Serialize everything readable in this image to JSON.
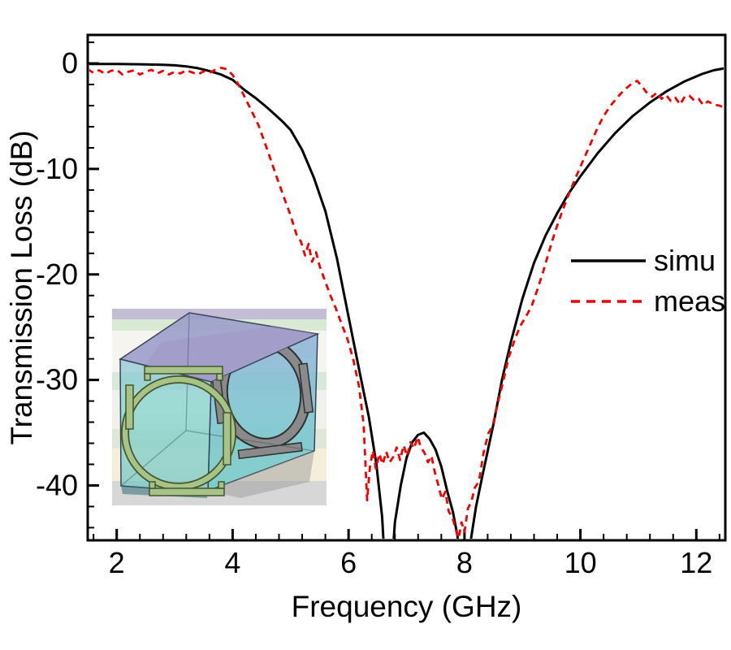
{
  "chart_data": {
    "type": "line",
    "title": "",
    "xlabel": "Frequency (GHz)",
    "ylabel": "Transmission Loss (dB)",
    "xlim": [
      1.5,
      12.5
    ],
    "ylim": [
      -45.2,
      2.7
    ],
    "grid": false,
    "legend_position": "right-middle",
    "x_major_ticks": [
      2,
      4,
      6,
      8,
      10,
      12
    ],
    "x_tick_labels": [
      "2",
      "4",
      "6",
      "8",
      "10",
      "12"
    ],
    "x_minor_step": 0.4,
    "y_major_ticks": [
      0,
      -10,
      -20,
      -30,
      -40
    ],
    "y_tick_labels": [
      "0",
      "-10",
      "-20",
      "-30",
      "-40"
    ],
    "y_minor_step": 2,
    "series": [
      {
        "name": "simu",
        "color": "#000000",
        "style": "solid",
        "points": [
          [
            1.5,
            -0.05
          ],
          [
            2.0,
            -0.06
          ],
          [
            2.4,
            -0.08
          ],
          [
            2.8,
            -0.13
          ],
          [
            3.0,
            -0.18
          ],
          [
            3.2,
            -0.28
          ],
          [
            3.4,
            -0.45
          ],
          [
            3.6,
            -0.72
          ],
          [
            3.8,
            -1.05
          ],
          [
            4.0,
            -1.55
          ],
          [
            4.2,
            -2.5
          ],
          [
            4.4,
            -3.3
          ],
          [
            4.6,
            -4.2
          ],
          [
            4.86,
            -5.5
          ],
          [
            5.0,
            -6.3
          ],
          [
            5.2,
            -8.2
          ],
          [
            5.4,
            -10.8
          ],
          [
            5.6,
            -14.0
          ],
          [
            5.8,
            -18.5
          ],
          [
            6.0,
            -24.0
          ],
          [
            6.2,
            -29.5
          ],
          [
            6.35,
            -33.5
          ],
          [
            6.48,
            -38.0
          ],
          [
            6.58,
            -43.0
          ],
          [
            6.68,
            -53.0
          ],
          [
            6.8,
            -43.5
          ],
          [
            6.9,
            -40.0
          ],
          [
            7.0,
            -37.4
          ],
          [
            7.1,
            -35.9
          ],
          [
            7.2,
            -35.2
          ],
          [
            7.3,
            -35.0
          ],
          [
            7.4,
            -35.6
          ],
          [
            7.5,
            -36.6
          ],
          [
            7.6,
            -38.2
          ],
          [
            7.7,
            -40.5
          ],
          [
            7.8,
            -42.5
          ],
          [
            7.88,
            -44.8
          ],
          [
            7.99,
            -56.0
          ],
          [
            8.1,
            -45.5
          ],
          [
            8.2,
            -42.0
          ],
          [
            8.32,
            -38.8
          ],
          [
            8.5,
            -34.2
          ],
          [
            8.65,
            -29.9
          ],
          [
            8.8,
            -26.4
          ],
          [
            9.0,
            -22.3
          ],
          [
            9.2,
            -18.9
          ],
          [
            9.4,
            -16.3
          ],
          [
            9.6,
            -14.2
          ],
          [
            9.8,
            -12.3
          ],
          [
            10.0,
            -10.7
          ],
          [
            10.3,
            -8.5
          ],
          [
            10.6,
            -6.6
          ],
          [
            10.9,
            -5.0
          ],
          [
            11.2,
            -3.7
          ],
          [
            11.5,
            -2.6
          ],
          [
            11.8,
            -1.7
          ],
          [
            12.1,
            -1.0
          ],
          [
            12.3,
            -0.65
          ],
          [
            12.5,
            -0.45
          ]
        ]
      },
      {
        "name": "meas",
        "color": "#f50000",
        "style": "dashed",
        "points": [
          [
            1.5,
            -0.55
          ],
          [
            1.6,
            -0.9
          ],
          [
            1.7,
            -0.65
          ],
          [
            1.8,
            -1.0
          ],
          [
            1.9,
            -0.7
          ],
          [
            2.0,
            -0.6
          ],
          [
            2.1,
            -1.05
          ],
          [
            2.2,
            -0.8
          ],
          [
            2.3,
            -0.65
          ],
          [
            2.4,
            -1.05
          ],
          [
            2.5,
            -0.8
          ],
          [
            2.6,
            -0.6
          ],
          [
            2.7,
            -0.95
          ],
          [
            2.8,
            -0.7
          ],
          [
            2.9,
            -1.05
          ],
          [
            3.0,
            -0.8
          ],
          [
            3.1,
            -0.95
          ],
          [
            3.2,
            -0.65
          ],
          [
            3.3,
            -0.85
          ],
          [
            3.4,
            -1.05
          ],
          [
            3.5,
            -0.75
          ],
          [
            3.6,
            -0.9
          ],
          [
            3.7,
            -0.6
          ],
          [
            3.8,
            -0.42
          ],
          [
            3.9,
            -0.55
          ],
          [
            4.0,
            -1.1
          ],
          [
            4.1,
            -2.0
          ],
          [
            4.2,
            -3.1
          ],
          [
            4.3,
            -4.2
          ],
          [
            4.45,
            -5.9
          ],
          [
            4.6,
            -8.2
          ],
          [
            4.75,
            -10.6
          ],
          [
            4.9,
            -12.9
          ],
          [
            5.0,
            -14.4
          ],
          [
            5.1,
            -16.2
          ],
          [
            5.18,
            -16.9
          ],
          [
            5.25,
            -18.2
          ],
          [
            5.31,
            -17.1
          ],
          [
            5.37,
            -18.8
          ],
          [
            5.44,
            -17.9
          ],
          [
            5.5,
            -19.2
          ],
          [
            5.58,
            -20.4
          ],
          [
            5.68,
            -21.9
          ],
          [
            5.78,
            -23.2
          ],
          [
            5.88,
            -24.7
          ],
          [
            5.98,
            -26.1
          ],
          [
            6.08,
            -28.0
          ],
          [
            6.18,
            -30.6
          ],
          [
            6.26,
            -34.2
          ],
          [
            6.32,
            -41.4
          ],
          [
            6.37,
            -38.2
          ],
          [
            6.42,
            -36.7
          ],
          [
            6.47,
            -38.4
          ],
          [
            6.53,
            -37.0
          ],
          [
            6.59,
            -38.0
          ],
          [
            6.65,
            -36.8
          ],
          [
            6.71,
            -37.8
          ],
          [
            6.77,
            -37.3
          ],
          [
            6.83,
            -36.4
          ],
          [
            6.89,
            -37.6
          ],
          [
            6.95,
            -36.2
          ],
          [
            7.01,
            -37.2
          ],
          [
            7.07,
            -35.9
          ],
          [
            7.13,
            -36.5
          ],
          [
            7.19,
            -35.4
          ],
          [
            7.25,
            -36.4
          ],
          [
            7.31,
            -36.9
          ],
          [
            7.37,
            -37.8
          ],
          [
            7.43,
            -37.2
          ],
          [
            7.49,
            -38.8
          ],
          [
            7.55,
            -40.0
          ],
          [
            7.61,
            -41.3
          ],
          [
            7.67,
            -40.6
          ],
          [
            7.73,
            -42.5
          ],
          [
            7.79,
            -43.0
          ],
          [
            7.85,
            -44.2
          ],
          [
            7.9,
            -45.0
          ],
          [
            7.95,
            -43.5
          ],
          [
            8.0,
            -44.4
          ],
          [
            8.06,
            -42.2
          ],
          [
            8.12,
            -41.5
          ],
          [
            8.18,
            -40.2
          ],
          [
            8.25,
            -39.6
          ],
          [
            8.33,
            -36.9
          ],
          [
            8.41,
            -35.1
          ],
          [
            8.49,
            -34.3
          ],
          [
            8.57,
            -32.3
          ],
          [
            8.66,
            -30.3
          ],
          [
            8.76,
            -27.9
          ],
          [
            8.86,
            -26.3
          ],
          [
            8.96,
            -24.9
          ],
          [
            9.06,
            -24.0
          ],
          [
            9.16,
            -23.0
          ],
          [
            9.26,
            -21.4
          ],
          [
            9.36,
            -19.7
          ],
          [
            9.46,
            -17.8
          ],
          [
            9.56,
            -16.0
          ],
          [
            9.68,
            -14.1
          ],
          [
            9.8,
            -12.4
          ],
          [
            9.92,
            -10.8
          ],
          [
            10.04,
            -9.3
          ],
          [
            10.16,
            -7.8
          ],
          [
            10.28,
            -6.3
          ],
          [
            10.4,
            -5.0
          ],
          [
            10.52,
            -4.0
          ],
          [
            10.64,
            -3.2
          ],
          [
            10.76,
            -2.5
          ],
          [
            10.88,
            -1.95
          ],
          [
            10.98,
            -1.65
          ],
          [
            11.08,
            -2.3
          ],
          [
            11.16,
            -2.9
          ],
          [
            11.24,
            -3.15
          ],
          [
            11.32,
            -2.75
          ],
          [
            11.4,
            -3.35
          ],
          [
            11.48,
            -3.0
          ],
          [
            11.56,
            -3.55
          ],
          [
            11.64,
            -3.25
          ],
          [
            11.72,
            -3.9
          ],
          [
            11.8,
            -3.15
          ],
          [
            11.88,
            -3.05
          ],
          [
            11.96,
            -3.5
          ],
          [
            12.04,
            -3.35
          ],
          [
            12.12,
            -3.95
          ],
          [
            12.2,
            -3.6
          ],
          [
            12.3,
            -3.9
          ],
          [
            12.4,
            -4.0
          ],
          [
            12.5,
            -4.25
          ]
        ]
      }
    ]
  },
  "inset": {
    "label": "unit-cell-3d-model",
    "colors": {
      "ring_front": "#a7c387",
      "ring_right": "#8a8a8a",
      "face_front": "#7fd3cd",
      "face_top": "#9a9cc9",
      "face_right": "#86b7d6"
    }
  }
}
